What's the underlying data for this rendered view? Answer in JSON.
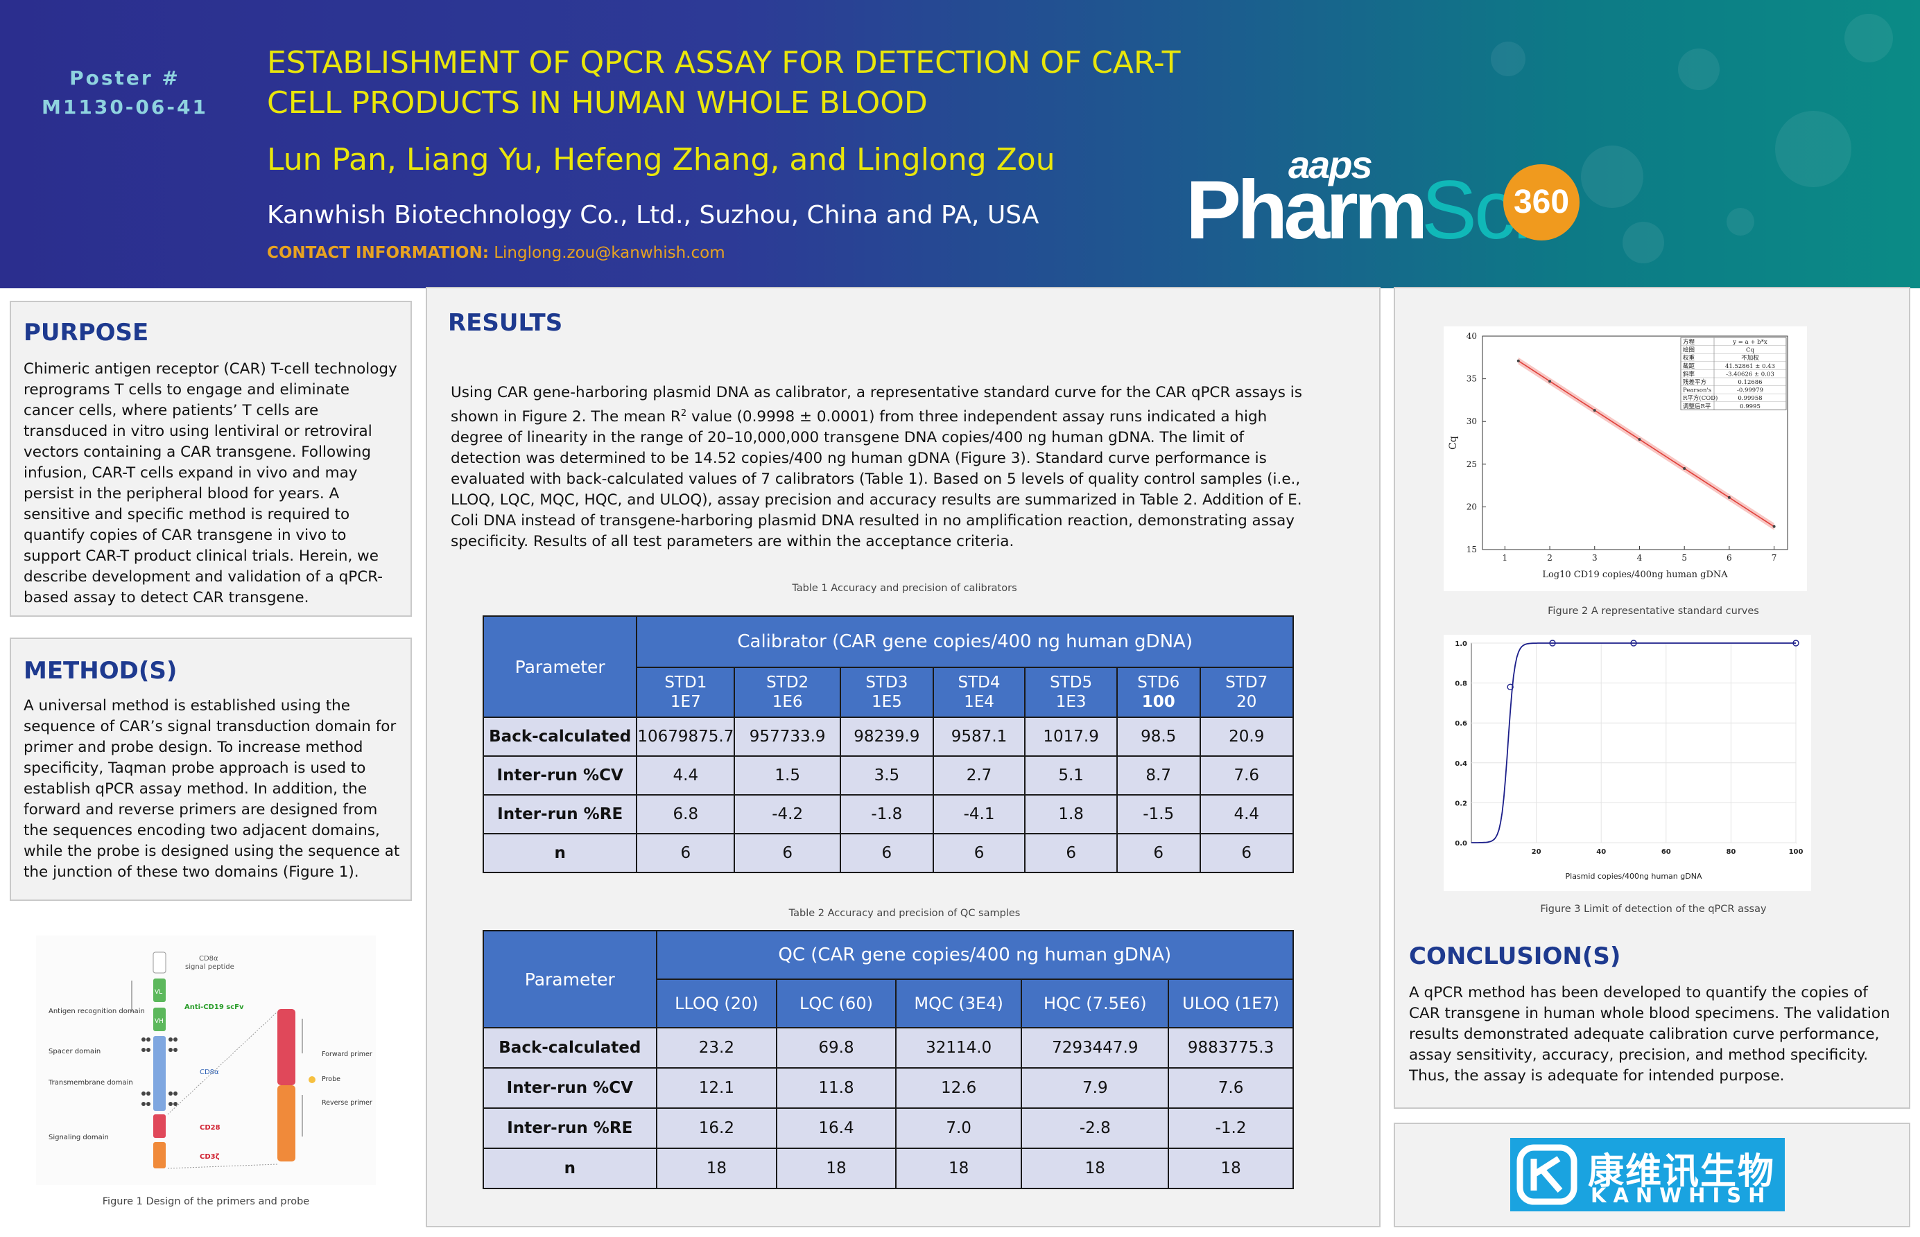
{
  "header": {
    "poster_label": "Poster #",
    "poster_number": "M1130-06-41",
    "title": "ESTABLISHMENT OF QPCR ASSAY FOR DETECTION OF CAR-T CELL PRODUCTS IN HUMAN WHOLE BLOOD",
    "authors": "Lun Pan, Liang Yu, Hefeng Zhang, and Linglong Zou",
    "affiliation": "Kanwhish Biotechnology Co., Ltd., Suzhou, China and PA, USA",
    "contact_label": "CONTACT INFORMATION:",
    "contact_email": "Linglong.zou@kanwhish.com",
    "logo_aaps": "aaps",
    "logo_pharm": "Pharm",
    "logo_sci": "Sci",
    "logo_badge": "360"
  },
  "purpose": {
    "heading": "PURPOSE",
    "text": "Chimeric antigen receptor (CAR) T-cell technology reprograms T cells to engage and eliminate cancer cells, where patients’ T cells are transduced in vitro using lentiviral or retroviral vectors containing a CAR transgene. Following infusion, CAR-T cells expand in vivo and may persist in the peripheral blood for years. A sensitive and specific method is required to quantify copies of CAR transgene in vivo to support CAR-T product clinical trials. Herein, we describe development and validation of a qPCR-based assay to detect CAR transgene."
  },
  "methods": {
    "heading": "METHOD(S)",
    "text": "A universal method is established using the sequence of CAR’s signal transduction domain for primer and probe design. To increase method specificity, Taqman probe approach is used to establish qPCR assay method. In addition, the forward and reverse primers are designed from the sequences encoding two adjacent domains, while the probe is designed using the sequence at the junction of these two domains (Figure 1)."
  },
  "figure1": {
    "caption": "Figure 1 Design of the primers and probe",
    "labels": {
      "cd8a": "CD8α",
      "signal_peptide": "signal peptide",
      "antigen": "Antigen recognition domain",
      "vl": "VL",
      "vh": "VH",
      "scfv": "Anti-CD19 scFv",
      "spacer": "Spacer domain",
      "tm": "Transmembrane domain",
      "cd8a2": "CD8α",
      "signaling": "Signaling domain",
      "cd28": "CD28",
      "cd3z": "CD3ζ",
      "fwd": "Forward primer",
      "probe": "Probe",
      "rev": "Reverse primer"
    }
  },
  "results": {
    "heading": "RESULTS",
    "text_pre": "Using CAR gene-harboring plasmid DNA as calibrator, a representative standard curve for the CAR qPCR assays is shown in Figure 2. The mean R",
    "text_sup": "2",
    "text_post": " value (0.9998 ± 0.0001) from three independent assay runs indicated a high degree of linearity in the range of 20–10,000,000 transgene DNA copies/400 ng human gDNA. The limit of detection was determined to be 14.52 copies/400 ng human gDNA (Figure 3). Standard curve performance is evaluated with back-calculated values of 7 calibrators (Table 1). Based on 5 levels of quality control samples (i.e., LLOQ, LQC, MQC, HQC, and ULOQ), assay precision and accuracy results are summarized in Table 2. Addition of E. Coli DNA instead of transgene-harboring plasmid DNA resulted in no amplification reaction, demonstrating assay specificity. Results of all test parameters are within the acceptance criteria."
  },
  "table1": {
    "caption": "Table 1 Accuracy and precision of calibrators",
    "param_header": "Parameter",
    "group_header": "Calibrator (CAR gene copies/400 ng human gDNA)",
    "columns": [
      {
        "name": "STD1",
        "conc": "1E7"
      },
      {
        "name": "STD2",
        "conc": "1E6"
      },
      {
        "name": "STD3",
        "conc": "1E5"
      },
      {
        "name": "STD4",
        "conc": "1E4"
      },
      {
        "name": "STD5",
        "conc": "1E3"
      },
      {
        "name": "STD6",
        "conc": "100"
      },
      {
        "name": "STD7",
        "conc": "20"
      }
    ],
    "rows": [
      {
        "label": "Back-calculated",
        "values": [
          "10679875.7",
          "957733.9",
          "98239.9",
          "9587.1",
          "1017.9",
          "98.5",
          "20.9"
        ]
      },
      {
        "label": "Inter-run %CV",
        "values": [
          "4.4",
          "1.5",
          "3.5",
          "2.7",
          "5.1",
          "8.7",
          "7.6"
        ]
      },
      {
        "label": "Inter-run %RE",
        "values": [
          "6.8",
          "-4.2",
          "-1.8",
          "-4.1",
          "1.8",
          "-1.5",
          "4.4"
        ]
      },
      {
        "label": "n",
        "values": [
          "6",
          "6",
          "6",
          "6",
          "6",
          "6",
          "6"
        ]
      }
    ]
  },
  "table2": {
    "caption": "Table 2 Accuracy and precision of QC samples",
    "param_header": "Parameter",
    "group_header": "QC (CAR gene copies/400 ng human gDNA)",
    "columns": [
      "LLOQ (20)",
      "LQC (60)",
      "MQC (3E4)",
      "HQC (7.5E6)",
      "ULOQ (1E7)"
    ],
    "rows": [
      {
        "label": "Back-calculated",
        "values": [
          "23.2",
          "69.8",
          "32114.0",
          "7293447.9",
          "9883775.3"
        ]
      },
      {
        "label": "Inter-run %CV",
        "values": [
          "12.1",
          "11.8",
          "12.6",
          "7.9",
          "7.6"
        ]
      },
      {
        "label": "Inter-run %RE",
        "values": [
          "16.2",
          "16.4",
          "7.0",
          "-2.8",
          "-1.2"
        ]
      },
      {
        "label": "n",
        "values": [
          "18",
          "18",
          "18",
          "18",
          "18"
        ]
      }
    ]
  },
  "figure2": {
    "caption": "Figure 2 A representative standard curves",
    "ylabel": "Cq",
    "xlabel": "Log10 CD19 copies/400ng human gDNA",
    "legend": [
      [
        "方程",
        "y = a + b*x"
      ],
      [
        "绘图",
        "Cq"
      ],
      [
        "权重",
        "不加权"
      ],
      [
        "截距",
        "41.52861 ± 0.43"
      ],
      [
        "斜率",
        "-3.40626 ± 0.03"
      ],
      [
        "残差平方",
        "0.12686"
      ],
      [
        "Pearson's",
        "-0.99979"
      ],
      [
        "R平方(COD)",
        "0.99958"
      ],
      [
        "调整后R平",
        "0.9995"
      ]
    ]
  },
  "figure3": {
    "caption": "Figure 3 Limit of detection of the qPCR assay",
    "xlabel": "Plasmid copies/400ng human gDNA"
  },
  "conclusion": {
    "heading": "CONCLUSION(S)",
    "text": "A qPCR method has been developed to quantify the copies of CAR transgene in human whole blood specimens. The validation results demonstrated adequate calibration curve performance, assay sensitivity, accuracy, precision, and method specificity. Thus, the assay is adequate for intended purpose."
  },
  "footer_logo": {
    "chinese": "康维讯生物",
    "english": "KANWHISH"
  },
  "chart_data": [
    {
      "type": "scatter",
      "title": "",
      "xlabel": "Log10 CD19 copies/400ng human gDNA",
      "ylabel": "Cq",
      "xlim": [
        0.5,
        7.3
      ],
      "ylim": [
        15,
        40
      ],
      "xticks": [
        1,
        2,
        3,
        4,
        5,
        6,
        7
      ],
      "yticks": [
        15,
        20,
        25,
        30,
        35,
        40
      ],
      "x": [
        1.3,
        2,
        3,
        4,
        5,
        6,
        7
      ],
      "y": [
        37.1,
        34.7,
        31.3,
        27.9,
        24.5,
        21.1,
        17.7
      ],
      "fit": {
        "intercept": 41.52861,
        "slope": -3.40626
      }
    },
    {
      "type": "line",
      "title": "",
      "xlabel": "Plasmid copies/400ng human gDNA",
      "ylabel": "",
      "xlim": [
        0,
        100
      ],
      "ylim": [
        0,
        1
      ],
      "xticks": [
        20,
        40,
        60,
        80,
        100
      ],
      "yticks": [
        0.0,
        0.2,
        0.4,
        0.6,
        0.8,
        1.0
      ],
      "points_x": [
        12,
        25,
        50,
        100
      ],
      "points_y": [
        0.78,
        1.0,
        1.0,
        1.0
      ]
    }
  ]
}
